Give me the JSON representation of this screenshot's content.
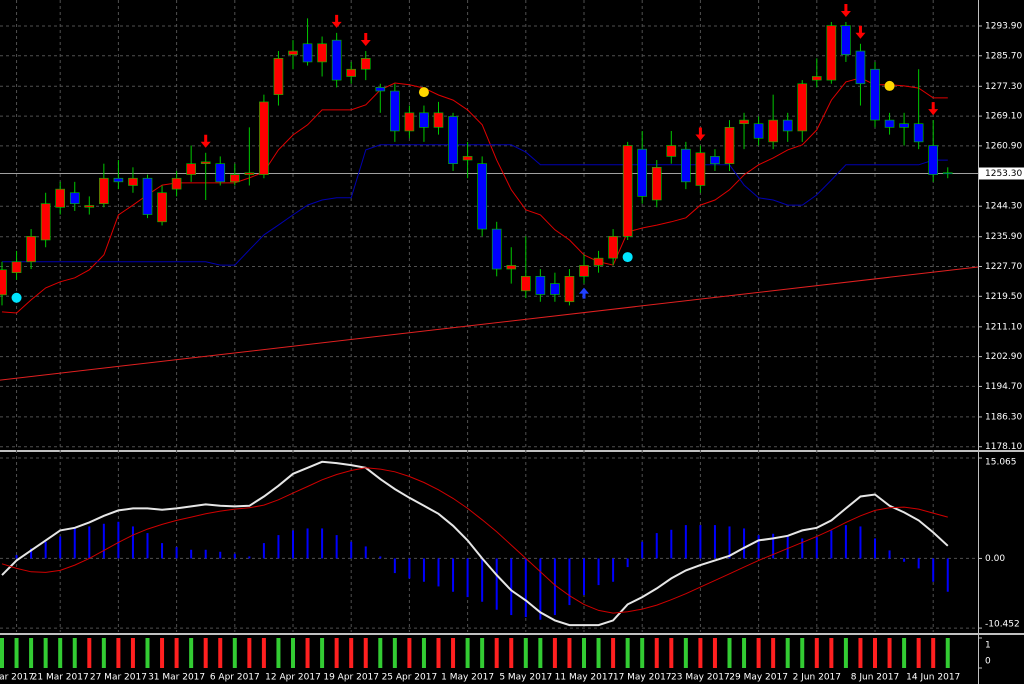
{
  "chart_data": [
    {
      "type": "candlestick",
      "categories": [
        null,
        "ar 2017",
        null,
        null,
        "21 Mar 2017",
        null,
        null,
        null,
        "27 Mar 2017",
        null,
        null,
        null,
        "31 Mar 2017",
        null,
        null,
        null,
        "6 Apr 2017",
        null,
        null,
        null,
        "12 Apr 2017",
        null,
        null,
        null,
        "19 Apr 2017",
        null,
        null,
        null,
        "25 Apr 2017",
        null,
        null,
        null,
        "1 May 2017",
        null,
        null,
        null,
        "5 May 2017",
        null,
        null,
        null,
        "11 May 2017",
        null,
        null,
        null,
        "17 May 2017",
        null,
        null,
        null,
        "23 May 2017",
        null,
        null,
        null,
        "29 May 2017",
        null,
        null,
        null,
        "2 Jun 2017",
        null,
        null,
        null,
        "8 Jun 2017",
        null,
        null,
        null,
        "14 Jun 2017",
        null
      ],
      "open": [
        1219.9,
        1226,
        1229,
        1235,
        1244,
        1248,
        1244,
        1245,
        1252,
        1250,
        1252,
        1240,
        1249,
        1253,
        1256,
        1256,
        1251,
        1253,
        1253,
        1275,
        1286,
        1289,
        1284,
        1290,
        1280,
        1282,
        1277,
        1276,
        1265,
        1270,
        1266,
        1269,
        1257,
        1256,
        1238,
        1227,
        1221,
        1225,
        1223,
        1218,
        1225,
        1228,
        1230,
        1236,
        1260,
        1246,
        1258,
        1260,
        1250,
        1258,
        1256,
        1267,
        1267,
        1262,
        1268,
        1265,
        1279,
        1279,
        1294,
        1287,
        1282,
        1268,
        1267,
        1267,
        1261,
        1253.5
      ],
      "high": [
        1229,
        1232,
        1238,
        1248,
        1251,
        1251,
        1247,
        1256,
        1257,
        1255,
        1253,
        1250,
        1254,
        1261,
        1259,
        1258,
        1256,
        1266,
        1275,
        1287,
        1290,
        1296,
        1291,
        1292,
        1284,
        1287,
        1278,
        1278,
        1272,
        1272,
        1273,
        1270,
        1262,
        1258,
        1240,
        1233,
        1236,
        1227,
        1226,
        1227,
        1231,
        1232,
        1238,
        1262,
        1265,
        1257,
        1265,
        1262,
        1261,
        1260,
        1268,
        1270,
        1269,
        1275,
        1270,
        1279,
        1285,
        1295,
        1295,
        1289,
        1284,
        1270,
        1270,
        1282,
        1268,
        1255
      ],
      "low": [
        1217,
        1224,
        1227,
        1233,
        1242,
        1243,
        1242,
        1244,
        1249,
        1248,
        1241,
        1239,
        1247,
        1251,
        1246,
        1250,
        1250,
        1250,
        1252,
        1272,
        1282,
        1283,
        1280,
        1277,
        1278,
        1279,
        1270,
        1262,
        1263,
        1262,
        1264,
        1254,
        1252,
        1236,
        1225,
        1223,
        1219,
        1218,
        1218,
        1217,
        1223,
        1226,
        1228,
        1235,
        1245,
        1244,
        1256,
        1249,
        1248,
        1254,
        1254,
        1260,
        1261,
        1260,
        1262,
        1262,
        1277,
        1278,
        1284,
        1272,
        1266,
        1264,
        1261,
        1260,
        1251,
        1252
      ],
      "close": [
        1226.8,
        1229,
        1236,
        1245,
        1249,
        1245,
        1244.5,
        1252,
        1251,
        1252,
        1242,
        1248,
        1252,
        1256,
        1256.5,
        1251,
        1253,
        1253.5,
        1273,
        1285,
        1287,
        1284,
        1289,
        1279,
        1282,
        1285,
        1276,
        1265,
        1270,
        1266,
        1270,
        1256,
        1258,
        1238,
        1227,
        1228,
        1225,
        1220,
        1220,
        1225,
        1228,
        1230,
        1236,
        1261,
        1247,
        1255,
        1261,
        1251,
        1259,
        1256,
        1266,
        1268,
        1263,
        1268,
        1265,
        1278,
        1280,
        1294,
        1286,
        1278,
        1268,
        1266,
        1266,
        1262,
        1253,
        1253.3
      ],
      "up_color": "#ff0000",
      "down_color": "#0000ff",
      "wick_color": "#00c800",
      "lines": [
        {
          "color": "#e00000",
          "values": [
            1215.2,
            1214.9,
            1218.5,
            1221.8,
            1223.5,
            1224.6,
            1226.8,
            1230.9,
            1241.9,
            1244.6,
            1247.4,
            1250.1,
            1250.7,
            1250.7,
            1250.7,
            1250.7,
            1250.7,
            1252.1,
            1253.7,
            1259.8,
            1263.9,
            1266.7,
            1270.8,
            1270.8,
            1270.8,
            1272.2,
            1276.3,
            1278.2,
            1277.7,
            1276.8,
            1274.9,
            1273.5,
            1270.8,
            1266.7,
            1257.0,
            1248.8,
            1243.3,
            1241.9,
            1237.8,
            1235.0,
            1230.9,
            1229.0,
            1228.1,
            1237.2,
            1238.3,
            1239.1,
            1240.0,
            1241.1,
            1244.6,
            1246.0,
            1248.8,
            1252.9,
            1255.7,
            1257.6,
            1259.8,
            1261.2,
            1265.3,
            1273.5,
            1278.5,
            1279.6,
            1277.7,
            1277.7,
            1277.4,
            1276.8,
            1274.1,
            1274.1
          ]
        },
        {
          "color": "#0000b0",
          "values": [
            1229.0,
            1229.0,
            1229.0,
            1229.0,
            1229.0,
            1229.0,
            1229.0,
            1229.0,
            1229.0,
            1229.0,
            1229.0,
            1229.0,
            1229.0,
            1229.0,
            1229.0,
            1228.1,
            1228.1,
            1232.3,
            1236.4,
            1239.1,
            1241.9,
            1244.6,
            1246.0,
            1246.6,
            1246.6,
            1259.8,
            1261.2,
            1261.2,
            1261.2,
            1261.2,
            1261.2,
            1261.2,
            1261.2,
            1261.2,
            1261.2,
            1261.2,
            1259.2,
            1255.7,
            1255.7,
            1255.7,
            1255.7,
            1255.7,
            1255.7,
            1255.7,
            1255.7,
            1255.7,
            1255.7,
            1255.7,
            1255.7,
            1255.7,
            1255.7,
            1250.1,
            1246.6,
            1246.0,
            1244.6,
            1244.6,
            1247.4,
            1251.5,
            1255.7,
            1255.7,
            1255.7,
            1255.7,
            1255.7,
            1255.7,
            1257.0,
            1257.0
          ]
        }
      ],
      "trendline": {
        "color": "#e02020",
        "values": [
          1196.5,
          1226.6
        ]
      },
      "current_price": {
        "value": 1253.3,
        "label": "1253.30"
      },
      "ylim": [
        1177.2,
        1301.05
      ],
      "yticks": [
        {
          "value": 1293.9,
          "label": "1293.90"
        },
        {
          "value": 1285.7,
          "label": "1285.70"
        },
        {
          "value": 1277.3,
          "label": "1277.30"
        },
        {
          "value": 1269.1,
          "label": "1269.10"
        },
        {
          "value": 1260.9,
          "label": "1260.90"
        },
        {
          "value": 1244.3,
          "label": "1244.30"
        },
        {
          "value": 1235.9,
          "label": "1235.90"
        },
        {
          "value": 1227.7,
          "label": "1227.70"
        },
        {
          "value": 1219.5,
          "label": "1219.50"
        },
        {
          "value": 1211.1,
          "label": "1211.10"
        },
        {
          "value": 1202.9,
          "label": "1202.90"
        },
        {
          "value": 1194.7,
          "label": "1194.70"
        },
        {
          "value": 1186.3,
          "label": "1186.30"
        },
        {
          "value": 1178.1,
          "label": "1178.10"
        }
      ],
      "grid": true,
      "signals": [
        {
          "index": 14,
          "direction": "down",
          "color": "#ff0000"
        },
        {
          "index": 23,
          "direction": "down",
          "color": "#ff0000"
        },
        {
          "index": 25,
          "direction": "down",
          "color": "#ff0000"
        },
        {
          "index": 48,
          "direction": "down",
          "color": "#ff0000"
        },
        {
          "index": 58,
          "direction": "down",
          "color": "#ff0000"
        },
        {
          "index": 59,
          "direction": "down",
          "color": "#ff0000"
        },
        {
          "index": 64,
          "direction": "down",
          "color": "#ff0000"
        },
        {
          "index": 40,
          "direction": "up",
          "color": "#2040ff"
        }
      ],
      "dots": [
        {
          "index": 1,
          "value": 1219.1,
          "color": "#00e5ff"
        },
        {
          "index": 29,
          "value": 1275.7,
          "color": "#ffd700"
        },
        {
          "index": 43,
          "value": 1230.3,
          "color": "#00e5ff"
        },
        {
          "index": 61,
          "value": 1277.4,
          "color": "#ffd700"
        }
      ]
    },
    {
      "type": "histogram",
      "values": [
        0,
        0.5,
        1.5,
        2.5,
        3.3,
        4.5,
        4.8,
        5.2,
        5.5,
        4.8,
        3.8,
        2.3,
        1.7,
        1.3,
        1.3,
        1.0,
        0.7,
        0.3,
        2.3,
        3.5,
        4.2,
        4.5,
        4.5,
        3.5,
        2.5,
        1.8,
        0.3,
        -2.2,
        -3.0,
        -3.5,
        -4.2,
        -5.0,
        -5.8,
        -6.5,
        -7.7,
        -8.5,
        -8.8,
        -9.2,
        -8.5,
        -7.0,
        -5.5,
        -4.0,
        -3.5,
        -1.3,
        2.5,
        3.8,
        4.3,
        5.0,
        5.0,
        5.0,
        4.8,
        4.5,
        3.5,
        3.7,
        3.5,
        3.0,
        3.2,
        4.2,
        5.0,
        4.8,
        3.0,
        1.2,
        -0.5,
        -1.5,
        -3.5,
        -5.0
      ],
      "color": "#0000ff",
      "lines": [
        {
          "color": "#e6e6e6",
          "values": [
            -2.5,
            -0.3,
            1.2,
            2.7,
            4.2,
            4.6,
            5.4,
            6.4,
            7.2,
            7.5,
            7.5,
            7.3,
            7.5,
            7.8,
            8.1,
            7.9,
            7.8,
            7.9,
            9.3,
            10.9,
            12.7,
            13.6,
            14.5,
            14.3,
            14.0,
            13.6,
            11.9,
            10.4,
            9.1,
            7.9,
            6.7,
            4.9,
            2.7,
            0,
            -2.5,
            -4.8,
            -6.3,
            -8.1,
            -9.3,
            -10.0,
            -10.0,
            -10.0,
            -9.3,
            -6.9,
            -5.8,
            -4.5,
            -3.0,
            -1.8,
            -1.0,
            -0.3,
            0.4,
            1.6,
            2.7,
            3.0,
            3.4,
            4.2,
            4.6,
            5.7,
            7.5,
            9.3,
            9.6,
            7.9,
            6.9,
            5.7,
            3.9,
            1.9
          ]
        },
        {
          "color": "#d00000",
          "values": [
            -0.8,
            -1.5,
            -2.0,
            -2.1,
            -1.8,
            -1.0,
            0,
            1.2,
            2.4,
            3.5,
            4.4,
            5.1,
            5.7,
            6.2,
            6.7,
            7.1,
            7.4,
            7.6,
            8.0,
            8.8,
            9.8,
            10.8,
            11.8,
            12.6,
            13.2,
            13.6,
            13.4,
            13.0,
            12.3,
            11.4,
            10.3,
            9.0,
            7.5,
            5.8,
            4.0,
            2.0,
            0.0,
            -2.0,
            -4.0,
            -5.6,
            -6.9,
            -7.8,
            -8.2,
            -8.0,
            -7.6,
            -7.0,
            -6.2,
            -5.3,
            -4.3,
            -3.3,
            -2.3,
            -1.3,
            -0.3,
            0.6,
            1.5,
            2.4,
            3.3,
            4.3,
            5.4,
            6.4,
            7.2,
            7.6,
            7.7,
            7.4,
            6.8,
            6.2
          ]
        }
      ],
      "ylim": [
        -11.04,
        15.82
      ],
      "yticks": [
        15.065,
        {
          "value": 0,
          "label": "0.00"
        },
        -10.452
      ]
    },
    {
      "type": "bar",
      "values": [
        1,
        1,
        1,
        1,
        1,
        1,
        1,
        1,
        1,
        1,
        1,
        1,
        1,
        1,
        1,
        1,
        1,
        1,
        1,
        1,
        1,
        1,
        1,
        1,
        1,
        1,
        1,
        1,
        1,
        1,
        1,
        1,
        1,
        1,
        1,
        1,
        1,
        1,
        1,
        1,
        1,
        1,
        1,
        1,
        1,
        1,
        1,
        1,
        1,
        1,
        1,
        1,
        1,
        1,
        1,
        1,
        1,
        1,
        1,
        1,
        1,
        1,
        1,
        1,
        1,
        1
      ],
      "colors": [
        "#33cc33",
        "#33cc33",
        "#33cc33",
        "#33cc33",
        "#33cc33",
        "#33cc33",
        "#ff2020",
        "#33cc33",
        "#ff2020",
        "#ff2020",
        "#33cc33",
        "#ff2020",
        "#ff2020",
        "#33cc33",
        "#ff2020",
        "#ff2020",
        "#33cc33",
        "#ff2020",
        "#ff2020",
        "#33cc33",
        "#33cc33",
        "#ff2020",
        "#33cc33",
        "#ff2020",
        "#ff2020",
        "#ff2020",
        "#33cc33",
        "#33cc33",
        "#ff2020",
        "#33cc33",
        "#ff2020",
        "#ff2020",
        "#33cc33",
        "#33cc33",
        "#ff2020",
        "#ff2020",
        "#33cc33",
        "#33cc33",
        "#ff2020",
        "#ff2020",
        "#33cc33",
        "#33cc33",
        "#ff2020",
        "#33cc33",
        "#33cc33",
        "#ff2020",
        "#ff2020",
        "#33cc33",
        "#ff2020",
        "#ff2020",
        "#33cc33",
        "#33cc33",
        "#ff2020",
        "#ff2020",
        "#33cc33",
        "#33cc33",
        "#ff2020",
        "#ff2020",
        "#33cc33",
        "#ff2020",
        "#ff2020",
        "#ff2020",
        "#33cc33",
        "#ff2020",
        "#ff2020",
        "#33cc33"
      ],
      "ylim": [
        0,
        1
      ],
      "yticks": [
        0,
        1
      ]
    }
  ]
}
